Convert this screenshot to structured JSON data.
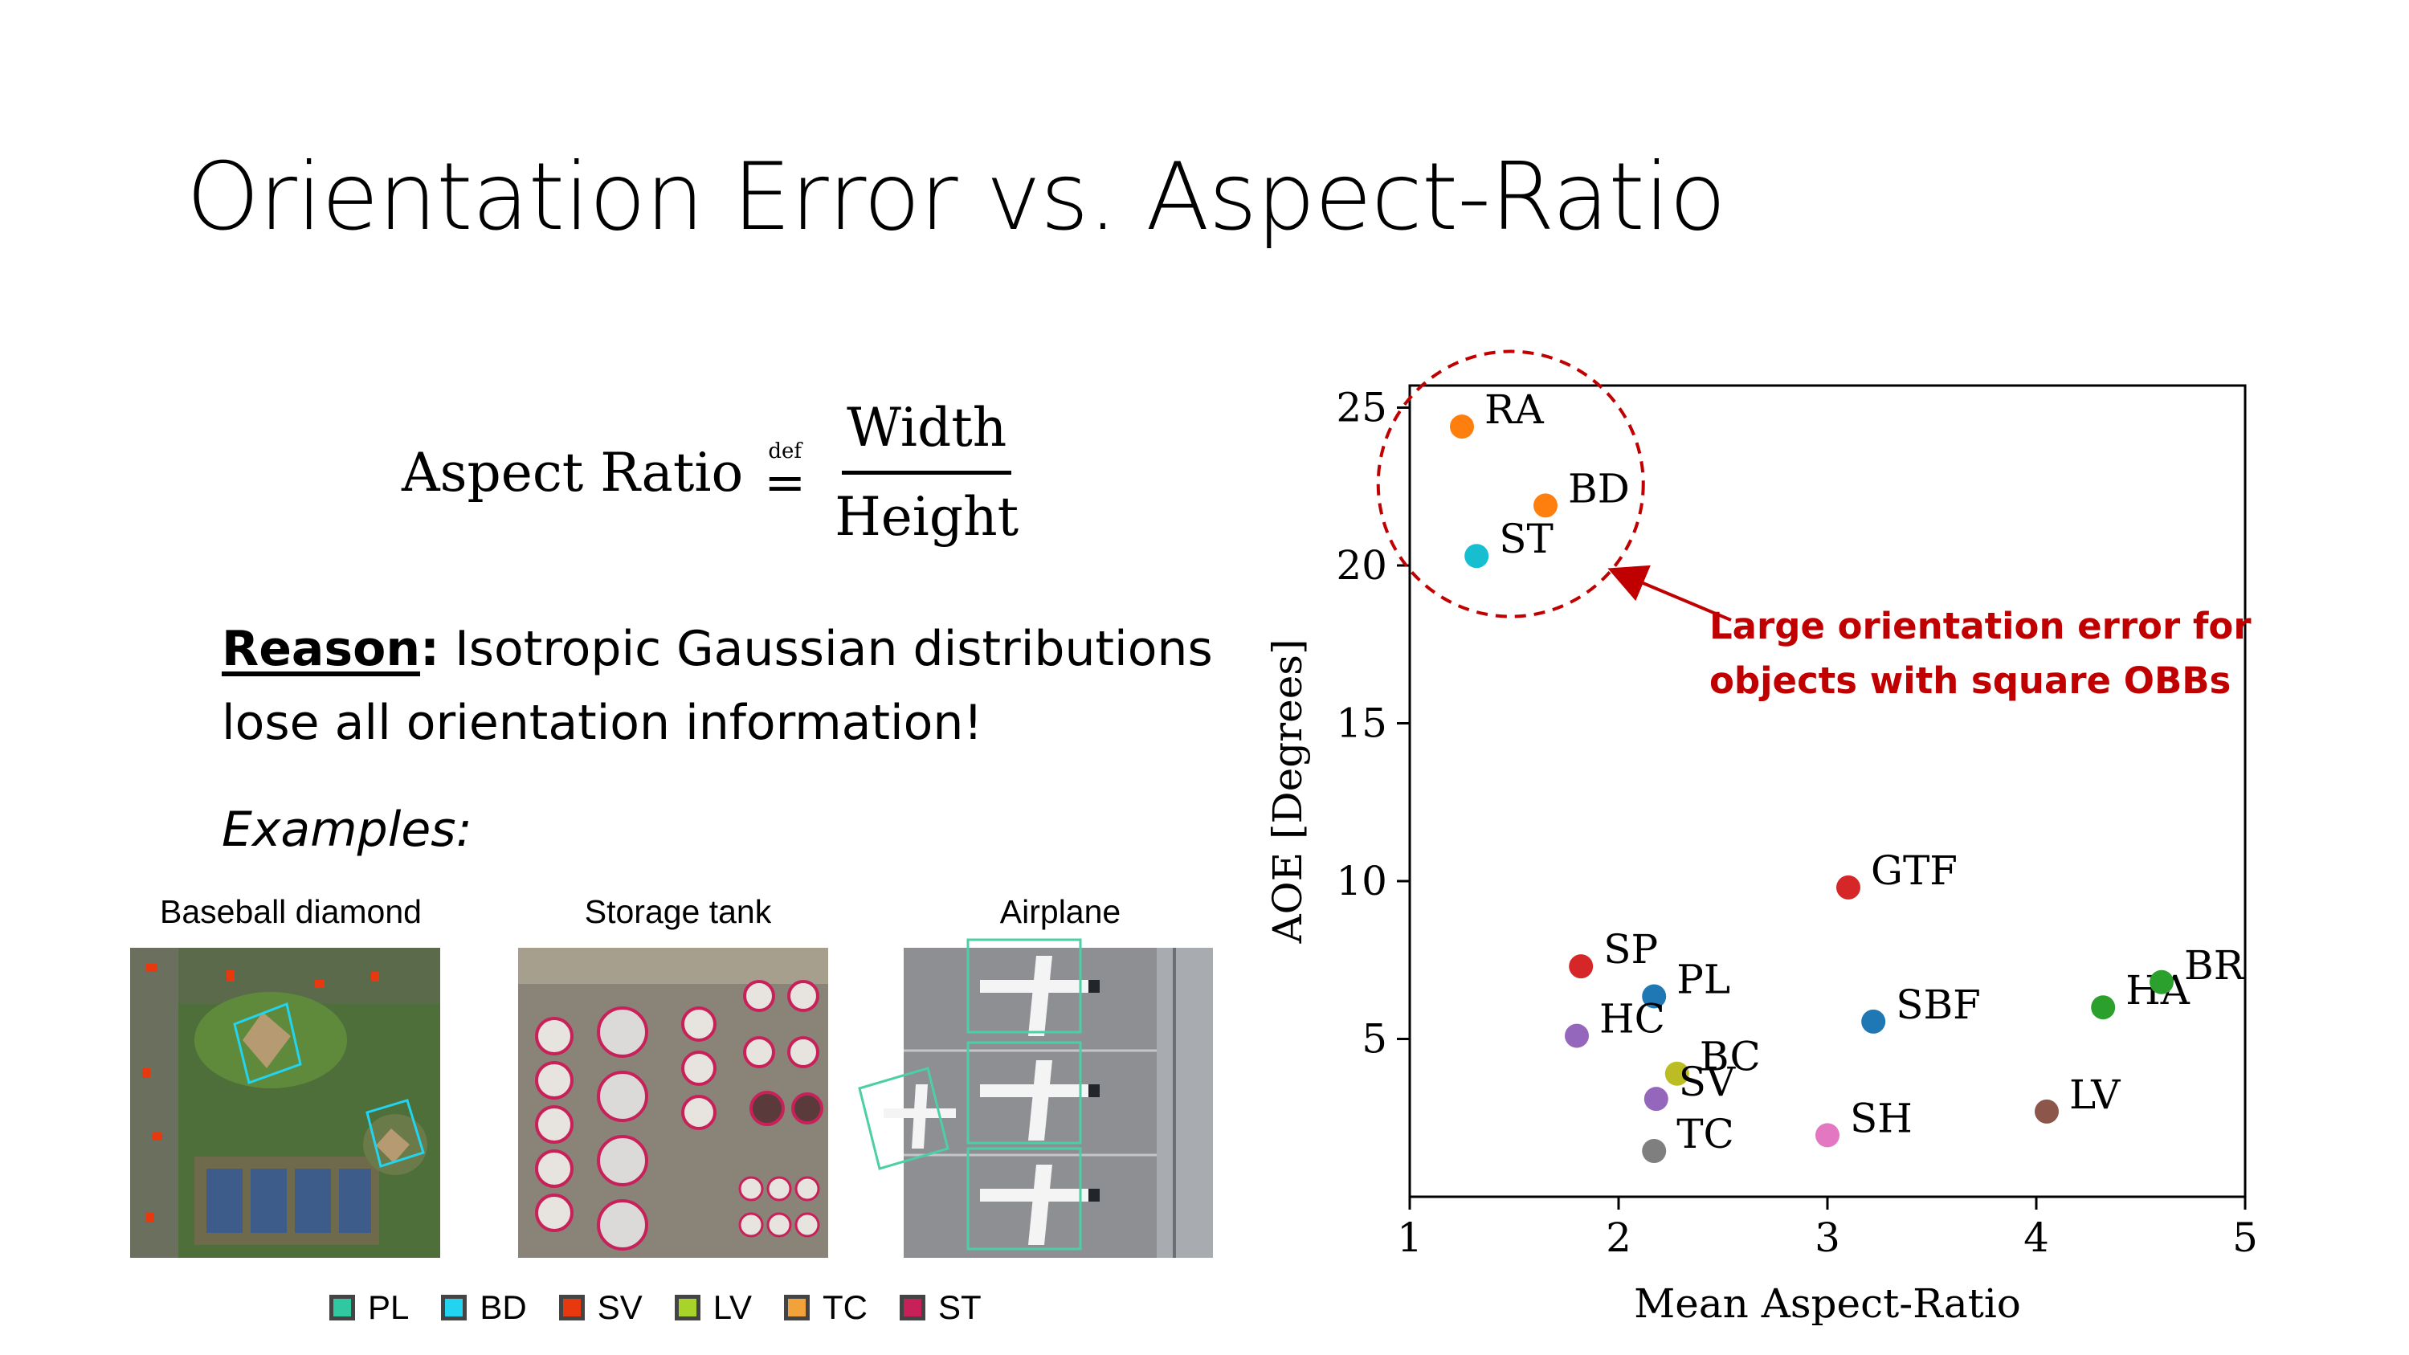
{
  "slide": {
    "title": "Orientation Error vs. Aspect-Ratio"
  },
  "formula": {
    "lhs": "Aspect Ratio",
    "def": "def",
    "eq": "=",
    "numerator": "Width",
    "denominator": "Height"
  },
  "reason": {
    "label": "Reason",
    "colon": ":",
    "text": " Isotropic Gaussian distributions lose all orientation information!"
  },
  "examples": {
    "label": "Examples:",
    "panels": [
      {
        "label": "Baseball diamond"
      },
      {
        "label": "Storage tank"
      },
      {
        "label": "Airplane"
      }
    ],
    "legend": [
      {
        "label": "PL",
        "color": "#2fc8a0"
      },
      {
        "label": "BD",
        "color": "#22d4f0"
      },
      {
        "label": "SV",
        "color": "#e8380e"
      },
      {
        "label": "LV",
        "color": "#a8d42a"
      },
      {
        "label": "TC",
        "color": "#f2a23a"
      },
      {
        "label": "ST",
        "color": "#c8215a"
      }
    ]
  },
  "chart_data": {
    "type": "scatter",
    "xlabel": "Mean Aspect-Ratio",
    "ylabel": "AOE [Degrees]",
    "xlim": [
      1,
      5
    ],
    "ylim": [
      0,
      25.7
    ],
    "xticks": [
      1,
      2,
      3,
      4,
      5
    ],
    "yticks": [
      5,
      10,
      15,
      20,
      25
    ],
    "grid": false,
    "points": [
      {
        "label": "RA",
        "x": 1.25,
        "y": 24.4,
        "color": "#ff7f0e"
      },
      {
        "label": "BD",
        "x": 1.65,
        "y": 21.9,
        "color": "#ff7f0e"
      },
      {
        "label": "ST",
        "x": 1.32,
        "y": 20.3,
        "color": "#17becf"
      },
      {
        "label": "GTF",
        "x": 3.1,
        "y": 9.8,
        "color": "#d62728"
      },
      {
        "label": "SP",
        "x": 1.82,
        "y": 7.3,
        "color": "#d62728"
      },
      {
        "label": "PL",
        "x": 2.17,
        "y": 6.35,
        "color": "#1f77b4"
      },
      {
        "label": "HC",
        "x": 1.8,
        "y": 5.1,
        "color": "#9467bd"
      },
      {
        "label": "SBF",
        "x": 3.22,
        "y": 5.55,
        "color": "#1f77b4"
      },
      {
        "label": "HA",
        "x": 4.32,
        "y": 6.0,
        "color": "#2ca02c"
      },
      {
        "label": "BR",
        "x": 4.6,
        "y": 6.8,
        "color": "#2ca02c"
      },
      {
        "label": "BC",
        "x": 2.28,
        "y": 3.9,
        "color": "#bcbd22"
      },
      {
        "label": "SV",
        "x": 2.18,
        "y": 3.1,
        "color": "#9467bd"
      },
      {
        "label": "TC",
        "x": 2.17,
        "y": 1.45,
        "color": "#7f7f7f"
      },
      {
        "label": "SH",
        "x": 3.0,
        "y": 1.95,
        "color": "#e377c2"
      },
      {
        "label": "LV",
        "x": 4.05,
        "y": 2.7,
        "color": "#8c564b"
      }
    ],
    "annotation": {
      "text_line1": "Large orientation error for",
      "text_line2": "objects with square OBBs",
      "color": "#c00000"
    }
  }
}
